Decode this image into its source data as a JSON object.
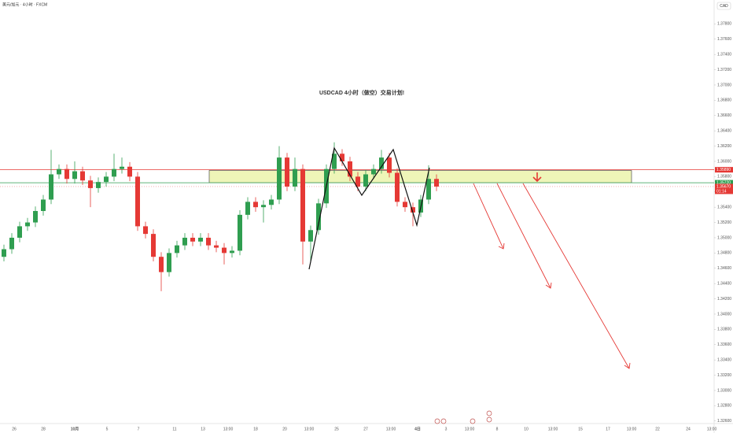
{
  "chart_data": {
    "type": "candlestick",
    "title": "USDCAD  4小时（做空）交易计划!",
    "symbol_info": "美元/加元 · 4小时 · FXCM",
    "currency_button": "CAD",
    "up_color": "#2f9e50",
    "down_color": "#e53935",
    "open": [
      1.3475,
      1.3485,
      1.35,
      1.3515,
      1.352,
      1.3535,
      1.355,
      1.3583,
      1.359,
      1.3577,
      1.3587,
      1.3575,
      1.3565,
      1.3573,
      1.358,
      1.359,
      1.3593,
      1.358,
      1.3515,
      1.3505,
      1.3475,
      1.3455,
      1.348,
      1.349,
      1.35,
      1.3495,
      1.35,
      1.349,
      1.3487,
      1.348,
      1.3483,
      1.353,
      1.3547,
      1.354,
      1.3543,
      1.355,
      1.3605,
      1.3567,
      1.359,
      1.3495,
      1.351,
      1.3545,
      1.359,
      1.361,
      1.36,
      1.358,
      1.3567,
      1.3583,
      1.359,
      1.3605,
      1.3585,
      1.3547,
      1.354,
      1.3533,
      1.355,
      1.3577
    ],
    "high": [
      1.3491,
      1.3506,
      1.3521,
      1.3526,
      1.3541,
      1.3556,
      1.3615,
      1.3596,
      1.3596,
      1.36,
      1.3593,
      1.3581,
      1.3579,
      1.3586,
      1.361,
      1.3605,
      1.3599,
      1.3586,
      1.3521,
      1.3511,
      1.3481,
      1.3486,
      1.3496,
      1.3506,
      1.3506,
      1.3506,
      1.3506,
      1.3496,
      1.3493,
      1.3489,
      1.3536,
      1.3553,
      1.3553,
      1.3549,
      1.3556,
      1.362,
      1.3611,
      1.3605,
      1.3596,
      1.3516,
      1.3551,
      1.3596,
      1.3625,
      1.3616,
      1.3606,
      1.3586,
      1.3589,
      1.3596,
      1.3615,
      1.3611,
      1.3591,
      1.3553,
      1.3546,
      1.3556,
      1.3595,
      1.3583
    ],
    "low": [
      1.3469,
      1.3479,
      1.3494,
      1.3509,
      1.3514,
      1.3529,
      1.3544,
      1.3577,
      1.3571,
      1.3571,
      1.3569,
      1.354,
      1.3559,
      1.3567,
      1.3574,
      1.3584,
      1.3574,
      1.3509,
      1.3499,
      1.3469,
      1.343,
      1.3449,
      1.3474,
      1.3484,
      1.3489,
      1.3489,
      1.3484,
      1.3481,
      1.3465,
      1.3474,
      1.3477,
      1.3524,
      1.3534,
      1.352,
      1.3537,
      1.3544,
      1.3561,
      1.3561,
      1.3465,
      1.347,
      1.3504,
      1.3539,
      1.3584,
      1.3594,
      1.3574,
      1.3561,
      1.3561,
      1.3577,
      1.3584,
      1.3579,
      1.3541,
      1.3534,
      1.3515,
      1.3527,
      1.3544,
      1.3561
    ],
    "close": [
      1.3485,
      1.35,
      1.3515,
      1.352,
      1.3535,
      1.355,
      1.3583,
      1.359,
      1.3577,
      1.3587,
      1.3575,
      1.3565,
      1.3573,
      1.358,
      1.359,
      1.3593,
      1.358,
      1.3515,
      1.3505,
      1.3475,
      1.3455,
      1.348,
      1.349,
      1.35,
      1.3495,
      1.35,
      1.349,
      1.3487,
      1.348,
      1.3483,
      1.353,
      1.3547,
      1.354,
      1.3543,
      1.355,
      1.3605,
      1.3567,
      1.359,
      1.3495,
      1.351,
      1.3545,
      1.359,
      1.361,
      1.36,
      1.358,
      1.3567,
      1.3583,
      1.359,
      1.3605,
      1.3585,
      1.3547,
      1.354,
      1.3533,
      1.355,
      1.3577,
      1.3567
    ],
    "ylim": [
      1.32443,
      1.38113
    ],
    "yticks": [
      {
        "value": 1.378,
        "label": "1.37800"
      },
      {
        "value": 1.376,
        "label": "1.37600"
      },
      {
        "value": 1.374,
        "label": "1.37400"
      },
      {
        "value": 1.372,
        "label": "1.37200"
      },
      {
        "value": 1.37,
        "label": "1.37000"
      },
      {
        "value": 1.368,
        "label": "1.36800"
      },
      {
        "value": 1.366,
        "label": "1.36600"
      },
      {
        "value": 1.364,
        "label": "1.36400"
      },
      {
        "value": 1.362,
        "label": "1.36200"
      },
      {
        "value": 1.36,
        "label": "1.36000"
      },
      {
        "value": 1.358,
        "label": "1.35800"
      },
      {
        "value": 1.356,
        "label": "1.35600"
      },
      {
        "value": 1.354,
        "label": "1.35400"
      },
      {
        "value": 1.352,
        "label": "1.35200"
      },
      {
        "value": 1.35,
        "label": "1.35000"
      },
      {
        "value": 1.348,
        "label": "1.34800"
      },
      {
        "value": 1.346,
        "label": "1.34600"
      },
      {
        "value": 1.344,
        "label": "1.34400"
      },
      {
        "value": 1.342,
        "label": "1.34200"
      },
      {
        "value": 1.34,
        "label": "1.34000"
      },
      {
        "value": 1.338,
        "label": "1.33800"
      },
      {
        "value": 1.336,
        "label": "1.33600"
      },
      {
        "value": 1.334,
        "label": "1.33400"
      },
      {
        "value": 1.332,
        "label": "1.33200"
      },
      {
        "value": 1.33,
        "label": "1.33000"
      },
      {
        "value": 1.328,
        "label": "1.32800"
      },
      {
        "value": 1.326,
        "label": "1.32600"
      }
    ],
    "time_labels": [
      "26",
      "28",
      "10月",
      "5",
      "7",
      "11",
      "13",
      "13:00",
      "18",
      "20",
      "13:00",
      "25",
      "27",
      "13:00",
      "4日",
      "3",
      "13:00",
      "8",
      "10",
      "13:00",
      "15",
      "17",
      "13:00",
      "22",
      "24",
      "13:00"
    ],
    "levels": [
      {
        "value": 1.3589,
        "label": "1.35890",
        "color": "#e53935"
      },
      {
        "value": 1.3572,
        "label": "1.35720",
        "color": "#2f9e50"
      }
    ],
    "zone": [
      1.3572,
      1.3588
    ],
    "last_price": {
      "value": 1.3567,
      "label": "1.35670"
    },
    "countdown": "01:14"
  }
}
